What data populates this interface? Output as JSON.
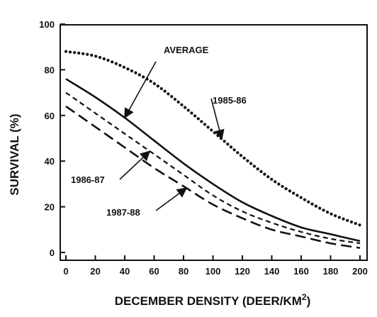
{
  "chart_data": {
    "type": "line",
    "xlabel": "DECEMBER DENSITY (DEER/KM",
    "xlabel_sup": "2",
    "xlabel_close": ")",
    "ylabel": "SURVIVAL (%)",
    "xlim": [
      0,
      200
    ],
    "ylim": [
      0,
      100
    ],
    "xticks": [
      0,
      20,
      40,
      60,
      80,
      100,
      120,
      140,
      160,
      180,
      200
    ],
    "yticks": [
      0,
      20,
      40,
      60,
      80,
      100
    ],
    "grid": false,
    "legend": "none",
    "x": [
      0,
      20,
      40,
      60,
      80,
      100,
      120,
      140,
      160,
      180,
      200
    ],
    "series": [
      {
        "name": "1985-86",
        "style": "dotted",
        "color": "#111111",
        "values": [
          88,
          86,
          81,
          74,
          64,
          53,
          42,
          32,
          24,
          17,
          12
        ]
      },
      {
        "name": "AVERAGE",
        "style": "solid",
        "color": "#111111",
        "values": [
          76,
          68,
          59,
          49,
          39,
          30,
          22,
          16,
          11,
          8,
          5
        ]
      },
      {
        "name": "1986-87",
        "style": "short-dash",
        "color": "#111111",
        "values": [
          70,
          61,
          52,
          43,
          34,
          25,
          18,
          13,
          9,
          6,
          4
        ]
      },
      {
        "name": "1987-88",
        "style": "long-dash",
        "color": "#111111",
        "values": [
          64,
          55,
          46,
          37,
          29,
          21,
          15,
          10,
          7,
          4,
          2
        ]
      }
    ],
    "annotations": [
      {
        "text": "AVERAGE",
        "series": "AVERAGE",
        "x": 40
      },
      {
        "text": "1985-86",
        "series": "1985-86",
        "x": 106
      },
      {
        "text": "1986-87",
        "series": "1986-87",
        "x": 57
      },
      {
        "text": "1987-88",
        "series": "1987-88",
        "x": 82
      }
    ]
  }
}
